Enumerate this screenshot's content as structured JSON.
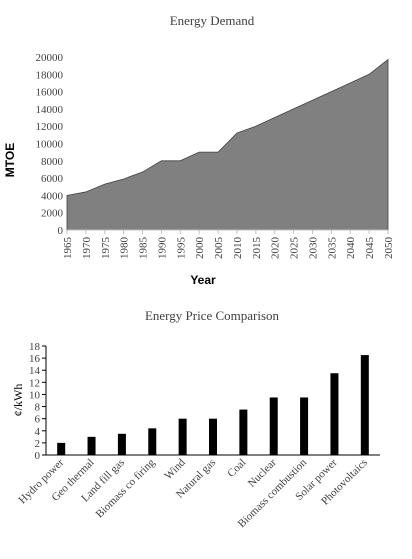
{
  "chart_data": [
    {
      "type": "area",
      "title": "Energy Demand",
      "xlabel": "Year",
      "ylabel": "MTOE",
      "x": [
        1965,
        1970,
        1975,
        1980,
        1985,
        1990,
        1995,
        2000,
        2005,
        2010,
        2015,
        2020,
        2025,
        2030,
        2035,
        2040,
        2045,
        2050
      ],
      "values": [
        4000,
        4400,
        5300,
        5900,
        6700,
        8000,
        8000,
        9000,
        9000,
        11200,
        12000,
        13000,
        14000,
        15000,
        16000,
        17000,
        18000,
        19700
      ],
      "ylim": [
        0,
        20000
      ],
      "yticks": [
        0,
        2000,
        4000,
        6000,
        8000,
        10000,
        12000,
        14000,
        16000,
        18000,
        20000
      ],
      "grid": false,
      "fill_color": "#808080"
    },
    {
      "type": "bar",
      "title": "Energy Price Comparison",
      "xlabel": "",
      "ylabel": "¢/kWh",
      "categories": [
        "Hydro power",
        "Geo thermal",
        "Land fill gas",
        "Biomass co firing",
        "Wind",
        "Natural gas",
        "Coal",
        "Nuclear",
        "Biomass combustion",
        "Solar power",
        "Photovoltaics"
      ],
      "values": [
        2,
        3,
        3.5,
        4.4,
        6,
        6,
        7.5,
        9.5,
        9.5,
        13.5,
        16.5
      ],
      "ylim": [
        0,
        18
      ],
      "yticks": [
        0,
        2,
        4,
        6,
        8,
        10,
        12,
        14,
        16,
        18
      ],
      "grid": false,
      "bar_color": "#000000"
    }
  ]
}
